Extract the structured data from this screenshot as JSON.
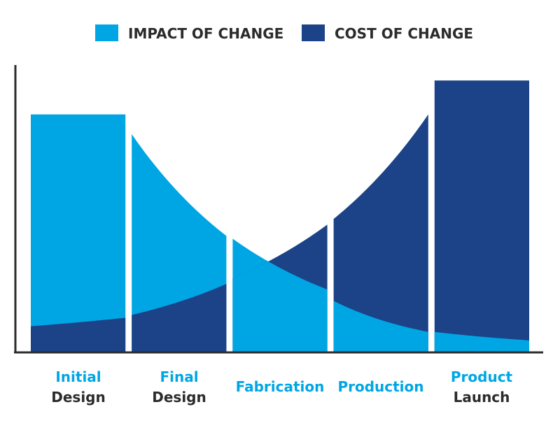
{
  "chart_data": {
    "type": "area",
    "title": "",
    "xlabel": "",
    "ylabel": "",
    "ylim": [
      0,
      100
    ],
    "grid": false,
    "legend_position": "top-center",
    "categories": [
      {
        "line1": "Initial",
        "line2": "Design"
      },
      {
        "line1": "Final",
        "line2": "Design"
      },
      {
        "line1": "Fabrication",
        "line2": ""
      },
      {
        "line1": "Production",
        "line2": ""
      },
      {
        "line1": "Product",
        "line2": "Launch"
      }
    ],
    "series": [
      {
        "name": "IMPACT OF CHANGE",
        "color": "#00a6e4",
        "stage_curves": [
          {
            "start": 84,
            "end": 84
          },
          {
            "start": 77,
            "end": 41
          },
          {
            "start": 40,
            "end": 22
          },
          {
            "start": 18,
            "end": 7
          },
          {
            "start": 7,
            "end": 4
          }
        ]
      },
      {
        "name": "COST OF CHANGE",
        "color": "#1c4287",
        "stage_curves": [
          {
            "start": 9,
            "end": 12
          },
          {
            "start": 13,
            "end": 24
          },
          {
            "start": 26,
            "end": 45
          },
          {
            "start": 47,
            "end": 84
          },
          {
            "start": 96,
            "end": 96
          }
        ]
      }
    ]
  }
}
